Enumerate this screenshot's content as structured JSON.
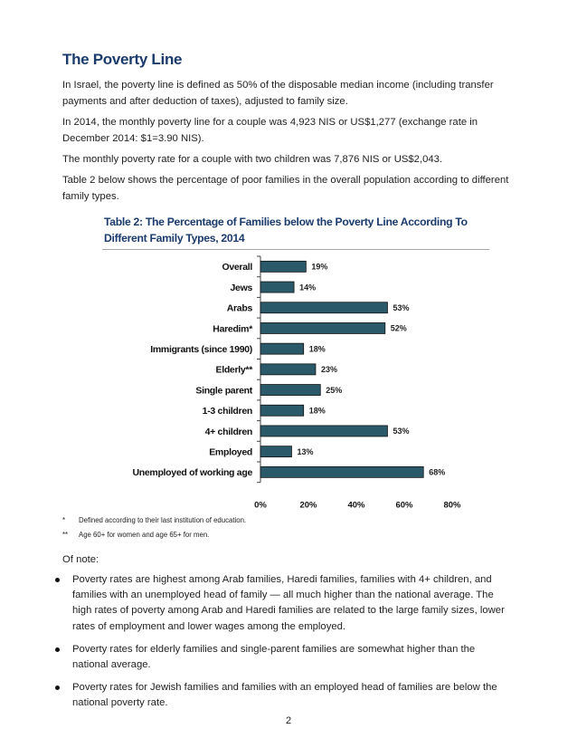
{
  "title": "The Poverty Line",
  "paragraphs": [
    "In Israel, the poverty line is defined as 50% of the disposable median income (including transfer payments and after deduction of taxes), adjusted to family size.",
    "In 2014, the monthly poverty line for a couple was 4,923 NIS or US$1,277 (exchange rate in December 2014: $1=3.90 NIS).",
    "The monthly poverty rate for a couple with two children was 7,876 NIS or US$2,043.",
    "Table 2 below shows the percentage of poor families in the overall population according to different family types."
  ],
  "chart_title_lines": [
    "Table 2: The Percentage of Families below the Poverty Line According To",
    "Different Family Types, 2014"
  ],
  "chart_data": {
    "type": "bar",
    "orientation": "horizontal",
    "title": "Table 2: The Percentage of Families below the Poverty Line According To Different Family Types, 2014",
    "categories": [
      "Overall",
      "Jews",
      "Arabs",
      "Haredim*",
      "Immigrants (since 1990)",
      "Elderly**",
      "Single parent",
      "1-3 children",
      "4+ children",
      "Employed",
      "Unemployed of working age"
    ],
    "values": [
      19,
      14,
      53,
      52,
      18,
      23,
      25,
      18,
      53,
      13,
      68
    ],
    "value_labels": [
      "19%",
      "14%",
      "53%",
      "52%",
      "18%",
      "23%",
      "25%",
      "18%",
      "53%",
      "13%",
      "68%"
    ],
    "xlim": [
      0,
      80
    ],
    "ticks": [
      0,
      20,
      40,
      60,
      80
    ],
    "tick_labels": [
      "0%",
      "20%",
      "40%",
      "60%",
      "80%"
    ],
    "grid": false,
    "legend": "none",
    "bar_color": "#2a5a6a",
    "bar_outline": "#111111"
  },
  "footnotes": [
    {
      "mark": "*",
      "text": "Defined according to their last institution of education."
    },
    {
      "mark": "**",
      "text": "Age 60+ for women and age 65+ for men."
    }
  ],
  "notes_heading": "Of note:",
  "bullets": [
    "Poverty rates are highest among Arab families, Haredi families, families with 4+ children, and families with an unemployed head of family — all much higher than the national average. The high rates of poverty among Arab and Haredi families are related to the large family sizes, lower rates of employment and lower wages among the employed.",
    "Poverty rates for elderly families and single-parent families are somewhat higher than the national average.",
    "Poverty rates for Jewish families and families with an employed head of families are below the national poverty rate."
  ],
  "page_number": "2",
  "colors": {
    "heading": "#1a3b6c",
    "bar": "#2a5a6a"
  }
}
